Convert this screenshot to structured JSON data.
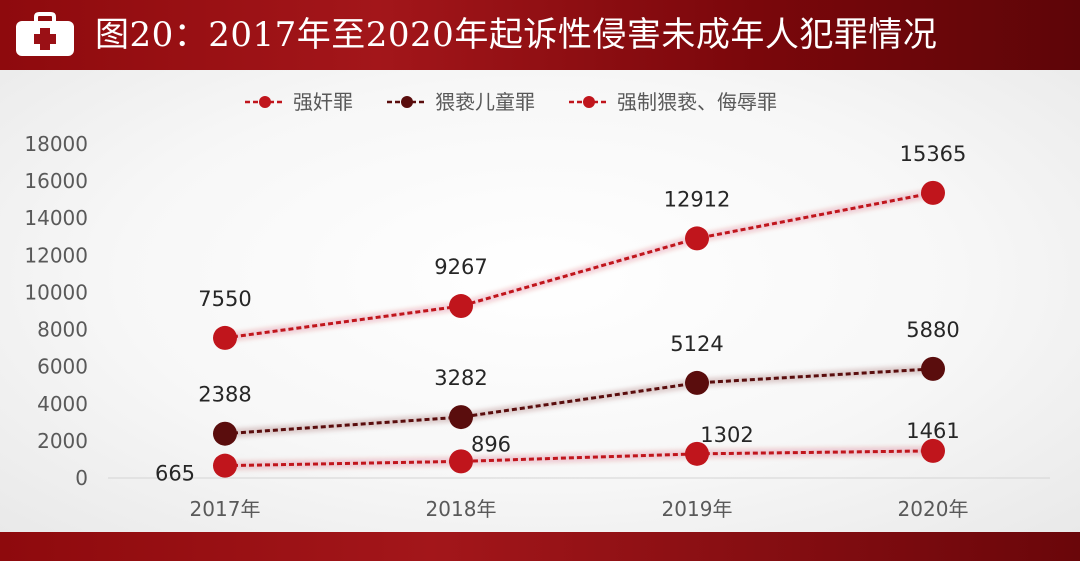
{
  "header": {
    "title": "图20：2017年至2020年起诉性侵害未成年人犯罪情况",
    "icon": "first-aid-kit-icon"
  },
  "colors": {
    "header": "#9a1015",
    "series": [
      "#c0151c",
      "#5a0d0d",
      "#c0151c"
    ]
  },
  "chart_data": {
    "type": "line",
    "title": "",
    "xlabel": "",
    "ylabel": "",
    "categories": [
      "2017年",
      "2018年",
      "2019年",
      "2020年"
    ],
    "ylim": [
      0,
      18000
    ],
    "yticks": [
      0,
      2000,
      4000,
      6000,
      8000,
      10000,
      12000,
      14000,
      16000,
      18000
    ],
    "grid": false,
    "legend_position": "top",
    "series": [
      {
        "name": "强奸罪",
        "values": [
          7550,
          9267,
          12912,
          15365
        ]
      },
      {
        "name": "猥亵儿童罪",
        "values": [
          2388,
          3282,
          5124,
          5880
        ]
      },
      {
        "name": "强制猥亵、侮辱罪",
        "values": [
          665,
          896,
          1302,
          1461
        ]
      }
    ]
  }
}
